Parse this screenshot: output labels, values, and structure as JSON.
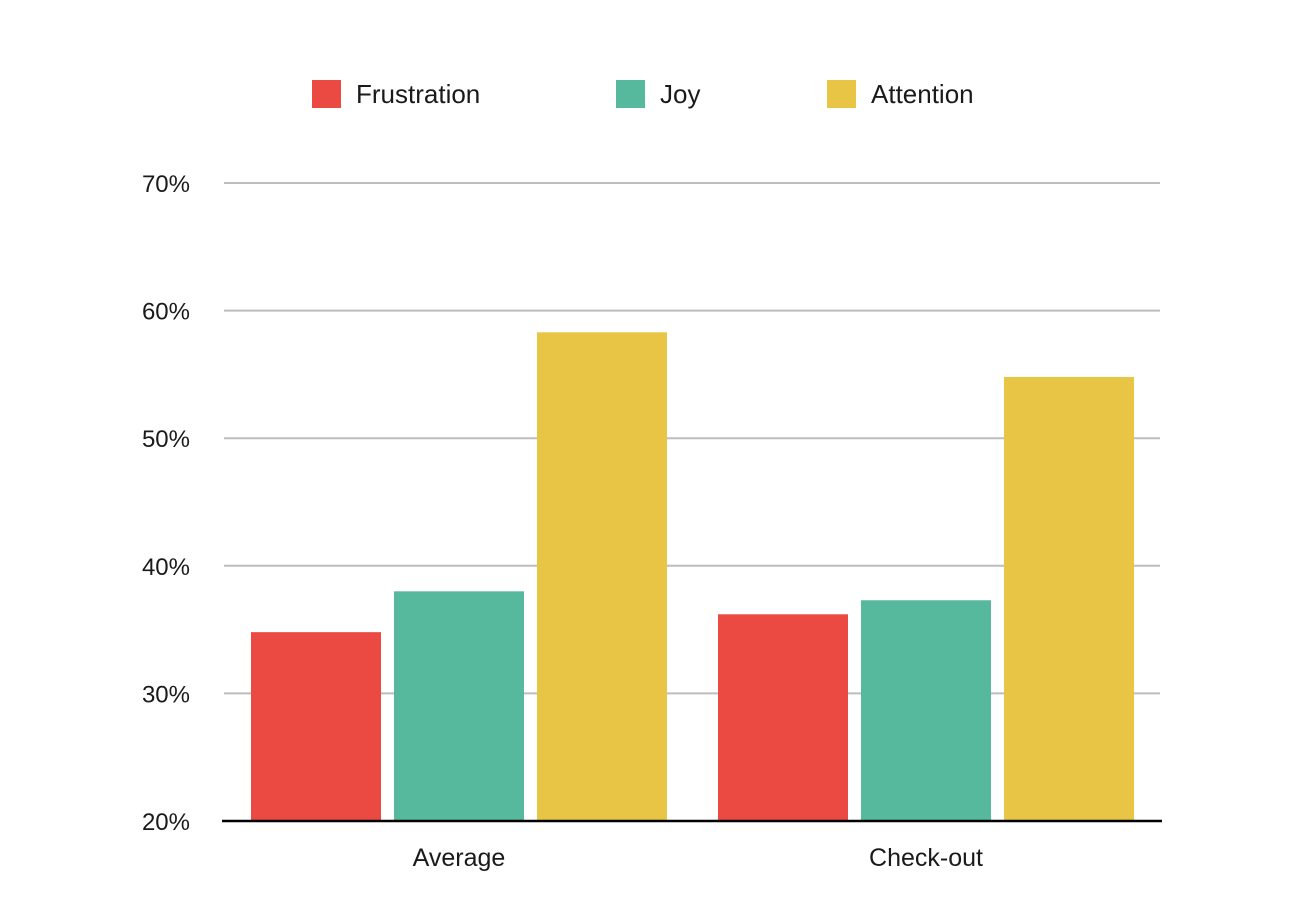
{
  "chart_data": {
    "type": "bar",
    "categories": [
      "Average",
      "Check-out"
    ],
    "series": [
      {
        "name": "Frustration",
        "values": [
          34.8,
          36.2
        ],
        "color": "#ea4a42"
      },
      {
        "name": "Joy",
        "values": [
          38.0,
          37.3
        ],
        "color": "#56b99d"
      },
      {
        "name": "Attention",
        "values": [
          58.3,
          54.8
        ],
        "color": "#e9c545"
      }
    ],
    "title": "",
    "xlabel": "",
    "ylabel": "",
    "ylim": [
      20,
      70
    ],
    "yticks": [
      20,
      30,
      40,
      50,
      60,
      70
    ],
    "ytick_labels": [
      "20%",
      "30%",
      "40%",
      "50%",
      "60%",
      "70%"
    ],
    "grid": true,
    "legend_position": "top",
    "gridline_color": "#bdbdbd",
    "axis_color": "#000000"
  }
}
